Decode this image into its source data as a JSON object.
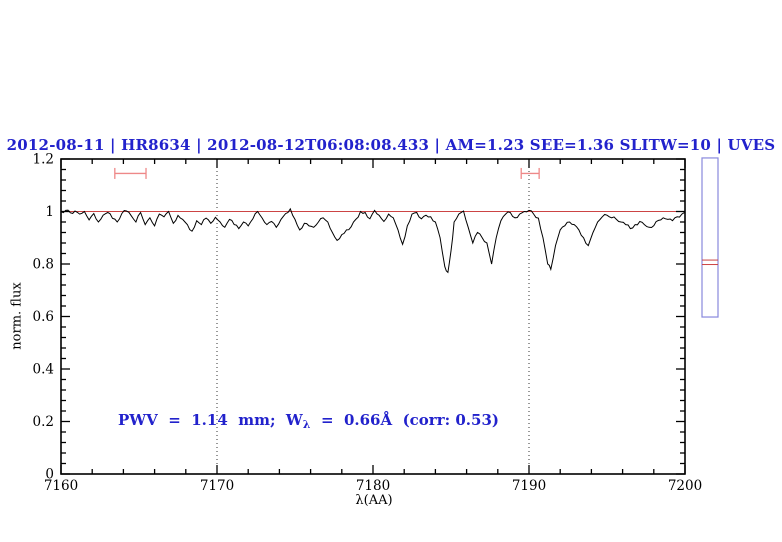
{
  "colors": {
    "accent_blue": "#2222cc",
    "panel_blue": "#8888dd",
    "reference_red": "#cc4444",
    "marker_red": "#ee8888",
    "spectrum_black": "#000000",
    "background": "#ffffff"
  },
  "title": {
    "text": "2012-08-11 | HR8634 | 2012-08-12T06:08:08.433 | AM=1.23 SEE=1.36 SLITW=10 | UVES"
  },
  "annotation": {
    "prefix": "PWV  =  1.14  mm;  W",
    "subscript": "λ",
    "suffix": "  =  0.66Å  (corr: 0.53)"
  },
  "chart_data": {
    "type": "line",
    "title": "2012-08-11 | HR8634 | 2012-08-12T06:08:08.433 | AM=1.23 SEE=1.36 SLITW=10 | UVES",
    "xlabel": "λ(AA)",
    "ylabel": "norm. flux",
    "xlim": [
      7160,
      7200
    ],
    "ylim": [
      0,
      1.2
    ],
    "grid": false,
    "x_ticks": {
      "major": [
        7160,
        7170,
        7180,
        7190,
        7200
      ],
      "labels": [
        "7160",
        "7170",
        "7180",
        "7190",
        "7200"
      ],
      "minor_step": 2
    },
    "y_ticks": {
      "major": [
        0,
        0.2,
        0.4,
        0.6,
        0.8,
        1,
        1.2
      ],
      "labels": [
        "0",
        "0.2",
        "0.4",
        "0.6",
        "0.8",
        "1",
        "1.2"
      ],
      "minor_step": 0.04
    },
    "reference_line_y": 1.0,
    "dotted_lines_x": [
      7170,
      7190
    ],
    "markers": [
      {
        "x_min": 7163.45,
        "x_max": 7165.45,
        "y": 1.145
      },
      {
        "x_min": 7189.5,
        "x_max": 7190.65,
        "y": 1.145
      }
    ],
    "side_panel": {
      "y_top": 1.204,
      "y_bottom": 0.598,
      "red_lines_y": [
        0.815,
        0.798
      ]
    },
    "series": [
      {
        "name": "spectrum",
        "color": "#000000",
        "points": [
          [
            7160.0,
            1.0
          ],
          [
            7160.3,
            1.004
          ],
          [
            7160.6,
            0.995
          ],
          [
            7160.9,
            1.002
          ],
          [
            7161.2,
            0.99
          ],
          [
            7161.5,
            1.0
          ],
          [
            7161.8,
            0.968
          ],
          [
            7162.1,
            0.992
          ],
          [
            7162.4,
            0.96
          ],
          [
            7162.7,
            0.986
          ],
          [
            7163.0,
            0.996
          ],
          [
            7163.3,
            0.974
          ],
          [
            7163.6,
            0.96
          ],
          [
            7163.9,
            0.992
          ],
          [
            7164.2,
            1.002
          ],
          [
            7164.5,
            0.984
          ],
          [
            7164.8,
            0.96
          ],
          [
            7165.1,
            0.996
          ],
          [
            7165.4,
            0.95
          ],
          [
            7165.7,
            0.976
          ],
          [
            7166.0,
            0.945
          ],
          [
            7166.3,
            0.99
          ],
          [
            7166.6,
            0.98
          ],
          [
            7166.9,
            1.0
          ],
          [
            7167.2,
            0.955
          ],
          [
            7167.5,
            0.985
          ],
          [
            7167.8,
            0.97
          ],
          [
            7168.1,
            0.95
          ],
          [
            7168.4,
            0.925
          ],
          [
            7168.7,
            0.965
          ],
          [
            7169.0,
            0.95
          ],
          [
            7169.3,
            0.975
          ],
          [
            7169.6,
            0.955
          ],
          [
            7169.9,
            0.978
          ],
          [
            7170.2,
            0.96
          ],
          [
            7170.5,
            0.94
          ],
          [
            7170.8,
            0.97
          ],
          [
            7171.1,
            0.95
          ],
          [
            7171.4,
            0.935
          ],
          [
            7171.7,
            0.96
          ],
          [
            7172.0,
            0.945
          ],
          [
            7172.3,
            0.972
          ],
          [
            7172.6,
            1.0
          ],
          [
            7172.9,
            0.975
          ],
          [
            7173.2,
            0.95
          ],
          [
            7173.5,
            0.962
          ],
          [
            7173.8,
            0.94
          ],
          [
            7174.1,
            0.97
          ],
          [
            7174.4,
            0.992
          ],
          [
            7174.7,
            1.01
          ],
          [
            7175.0,
            0.97
          ],
          [
            7175.3,
            0.93
          ],
          [
            7175.6,
            0.955
          ],
          [
            7175.9,
            0.945
          ],
          [
            7176.2,
            0.94
          ],
          [
            7176.5,
            0.96
          ],
          [
            7176.8,
            0.976
          ],
          [
            7177.1,
            0.96
          ],
          [
            7177.4,
            0.92
          ],
          [
            7177.7,
            0.89
          ],
          [
            7178.0,
            0.912
          ],
          [
            7178.3,
            0.93
          ],
          [
            7178.6,
            0.942
          ],
          [
            7178.9,
            0.97
          ],
          [
            7179.2,
            1.0
          ],
          [
            7179.5,
            0.996
          ],
          [
            7179.8,
            0.972
          ],
          [
            7180.1,
            1.004
          ],
          [
            7180.4,
            0.985
          ],
          [
            7180.7,
            0.962
          ],
          [
            7181.0,
            0.99
          ],
          [
            7181.3,
            0.976
          ],
          [
            7181.6,
            0.93
          ],
          [
            7181.9,
            0.875
          ],
          [
            7182.2,
            0.945
          ],
          [
            7182.5,
            0.99
          ],
          [
            7182.8,
            0.996
          ],
          [
            7183.1,
            0.972
          ],
          [
            7183.4,
            0.986
          ],
          [
            7183.7,
            0.98
          ],
          [
            7184.0,
            0.96
          ],
          [
            7184.3,
            0.9
          ],
          [
            7184.6,
            0.79
          ],
          [
            7184.8,
            0.768
          ],
          [
            7185.0,
            0.85
          ],
          [
            7185.2,
            0.96
          ],
          [
            7185.5,
            0.99
          ],
          [
            7185.8,
            1.002
          ],
          [
            7186.1,
            0.94
          ],
          [
            7186.4,
            0.88
          ],
          [
            7186.7,
            0.92
          ],
          [
            7187.0,
            0.9
          ],
          [
            7187.3,
            0.88
          ],
          [
            7187.6,
            0.8
          ],
          [
            7187.9,
            0.9
          ],
          [
            7188.2,
            0.965
          ],
          [
            7188.5,
            0.99
          ],
          [
            7188.8,
            0.996
          ],
          [
            7189.1,
            0.976
          ],
          [
            7189.4,
            0.99
          ],
          [
            7189.7,
            1.0
          ],
          [
            7190.0,
            1.004
          ],
          [
            7190.3,
            0.99
          ],
          [
            7190.6,
            0.975
          ],
          [
            7190.9,
            0.9
          ],
          [
            7191.2,
            0.8
          ],
          [
            7191.4,
            0.78
          ],
          [
            7191.7,
            0.87
          ],
          [
            7192.0,
            0.93
          ],
          [
            7192.3,
            0.946
          ],
          [
            7192.6,
            0.96
          ],
          [
            7192.9,
            0.95
          ],
          [
            7193.2,
            0.93
          ],
          [
            7193.5,
            0.9
          ],
          [
            7193.8,
            0.87
          ],
          [
            7194.1,
            0.92
          ],
          [
            7194.4,
            0.96
          ],
          [
            7194.7,
            0.98
          ],
          [
            7195.0,
            0.986
          ],
          [
            7195.3,
            0.976
          ],
          [
            7195.6,
            0.97
          ],
          [
            7195.9,
            0.96
          ],
          [
            7196.2,
            0.95
          ],
          [
            7196.5,
            0.935
          ],
          [
            7196.8,
            0.95
          ],
          [
            7197.1,
            0.962
          ],
          [
            7197.4,
            0.95
          ],
          [
            7197.7,
            0.94
          ],
          [
            7198.0,
            0.946
          ],
          [
            7198.3,
            0.966
          ],
          [
            7198.6,
            0.976
          ],
          [
            7198.9,
            0.97
          ],
          [
            7199.2,
            0.965
          ],
          [
            7199.5,
            0.98
          ],
          [
            7199.8,
            0.99
          ],
          [
            7200.0,
            0.996
          ]
        ]
      }
    ]
  }
}
